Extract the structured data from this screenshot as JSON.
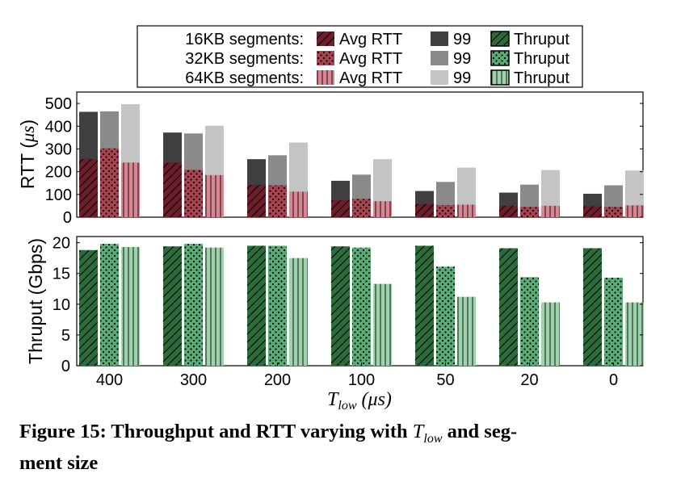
{
  "chart_data": [
    {
      "type": "bar",
      "panel": "rtt",
      "ylabel_prefix": "RTT",
      "ylabel_unit": "μs",
      "ylim": [
        0,
        550
      ],
      "yticks": [
        0,
        100,
        200,
        300,
        400,
        500
      ],
      "categories": [
        "400",
        "300",
        "200",
        "100",
        "50",
        "20",
        "0"
      ],
      "grid": false,
      "stacked_pairs": true,
      "series": [
        {
          "name": "Avg RTT",
          "segment": "16KB",
          "color": "#6b1f2a",
          "pattern": "diag",
          "values": [
            255,
            240,
            142,
            75,
            58,
            50,
            48
          ]
        },
        {
          "name": "99",
          "segment": "16KB",
          "color": "#404040",
          "values": [
            463,
            372,
            255,
            160,
            115,
            108,
            103
          ]
        },
        {
          "name": "Avg RTT",
          "segment": "32KB",
          "color": "#a84350",
          "pattern": "dots",
          "values": [
            302,
            208,
            140,
            80,
            52,
            45,
            45
          ]
        },
        {
          "name": "99",
          "segment": "32KB",
          "color": "#8a8a8a",
          "values": [
            465,
            368,
            272,
            187,
            155,
            143,
            140
          ]
        },
        {
          "name": "Avg RTT",
          "segment": "64KB",
          "color": "#d98592",
          "pattern": "vert",
          "values": [
            240,
            185,
            112,
            70,
            55,
            50,
            52
          ]
        },
        {
          "name": "99",
          "segment": "64KB",
          "color": "#c4c4c4",
          "values": [
            497,
            402,
            328,
            255,
            218,
            207,
            205
          ]
        }
      ]
    },
    {
      "type": "bar",
      "panel": "throughput",
      "ylabel": "Thruput (Gbps)",
      "ylim": [
        0,
        21
      ],
      "yticks": [
        0,
        5,
        10,
        15,
        20
      ],
      "categories": [
        "400",
        "300",
        "200",
        "100",
        "50",
        "20",
        "0"
      ],
      "xlabel_main": "T",
      "xlabel_sub": "low",
      "xlabel_unit": "(μs)",
      "grid": false,
      "series": [
        {
          "name": "Thruput",
          "segment": "16KB",
          "color": "#2e6b3c",
          "pattern": "diag",
          "values": [
            18.8,
            19.4,
            19.5,
            19.4,
            19.5,
            19.1,
            19.1
          ]
        },
        {
          "name": "Thruput",
          "segment": "32KB",
          "color": "#5aac76",
          "pattern": "dots",
          "values": [
            19.8,
            19.8,
            19.5,
            19.2,
            16.1,
            14.4,
            14.3
          ]
        },
        {
          "name": "Thruput",
          "segment": "64KB",
          "color": "#9ed3ac",
          "pattern": "vert",
          "values": [
            19.3,
            19.2,
            17.5,
            13.3,
            11.2,
            10.3,
            10.3
          ]
        }
      ]
    }
  ],
  "legend": {
    "rows": [
      {
        "label": "16KB segments:",
        "avg": "Avg RTT",
        "p99": "99",
        "thru": "Thruput"
      },
      {
        "label": "32KB segments:",
        "avg": "Avg RTT",
        "p99": "99",
        "thru": "Thruput"
      },
      {
        "label": "64KB segments:",
        "avg": "Avg RTT",
        "p99": "99",
        "thru": "Thruput"
      }
    ]
  },
  "caption": {
    "prefix": "Figure 15:  Throughput and RTT varying with ",
    "math_main": "T",
    "math_sub": "low",
    "suffix": " and seg-",
    "line2": "ment size"
  }
}
